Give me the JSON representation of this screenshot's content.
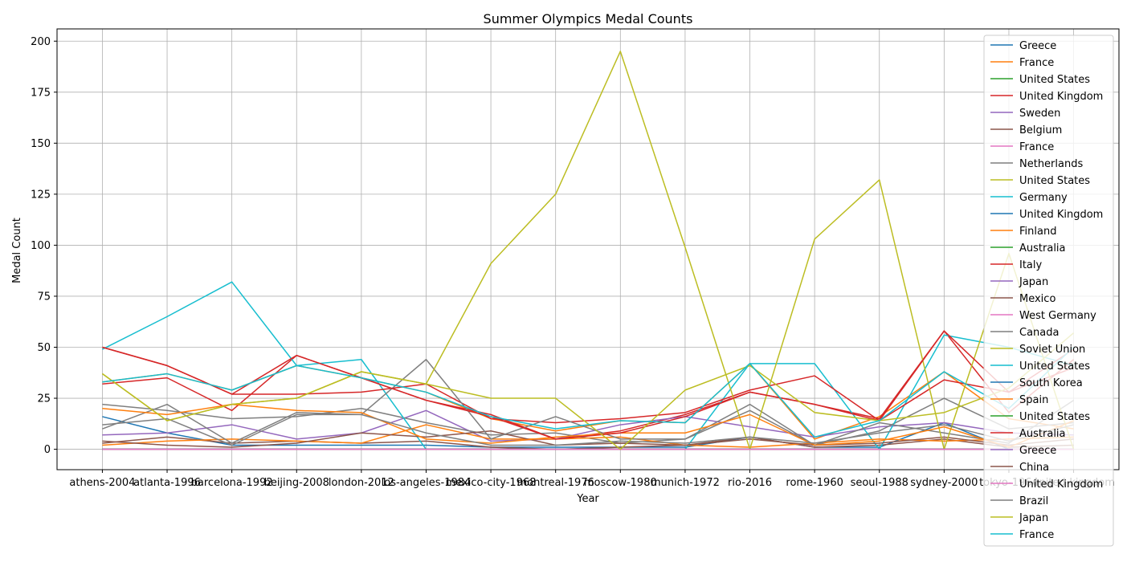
{
  "chart_data": {
    "type": "line",
    "title": "Summer Olympics Medal Counts",
    "xlabel": "Year",
    "ylabel": "Medal Count",
    "ylim": [
      -10,
      206
    ],
    "yticks": [
      0,
      25,
      50,
      75,
      100,
      125,
      150,
      175,
      200
    ],
    "grid": true,
    "legend_position": "upper right",
    "categories": [
      "athens-2004",
      "atlanta-1996",
      "barcelona-1992",
      "beijing-2008",
      "london-2012",
      "los-angeles-1984",
      "mexico-city-1968",
      "montreal-1976",
      "moscow-1980",
      "munich-1972",
      "rio-2016",
      "rome-1960",
      "seoul-1988",
      "sydney-2000",
      "tokyo-1964",
      "united-kingdom"
    ],
    "series": [
      {
        "name": "Greece",
        "color": "#1f77b4",
        "values": [
          16,
          8,
          2,
          2,
          2,
          2,
          1,
          1,
          1,
          1,
          6,
          1,
          1,
          13,
          0,
          0
        ]
      },
      {
        "name": "France",
        "color": "#ff7f0e",
        "values": [
          33,
          37,
          29,
          41,
          35,
          28,
          15,
          9,
          14,
          13,
          42,
          5,
          16,
          38,
          15,
          10
        ]
      },
      {
        "name": "United States",
        "color": "#2ca02c",
        "values": [
          0,
          0,
          0,
          0,
          0,
          0,
          0,
          0,
          0,
          0,
          0,
          0,
          0,
          0,
          0,
          0
        ]
      },
      {
        "name": "United Kingdom",
        "color": "#d62728",
        "values": [
          32,
          35,
          19,
          46,
          35,
          24,
          17,
          5,
          9,
          17,
          28,
          22,
          15,
          58,
          18,
          44
        ]
      },
      {
        "name": "Sweden",
        "color": "#9467bd",
        "values": [
          7,
          8,
          12,
          5,
          8,
          19,
          4,
          5,
          12,
          16,
          11,
          6,
          11,
          13,
          8,
          7
        ]
      },
      {
        "name": "Belgium",
        "color": "#8c564b",
        "values": [
          3,
          6,
          3,
          4,
          3,
          4,
          1,
          0,
          1,
          2,
          6,
          1,
          2,
          5,
          1,
          2
        ]
      },
      {
        "name": "France",
        "color": "#e377c2",
        "values": [
          0,
          0,
          0,
          0,
          0,
          0,
          0,
          0,
          0,
          0,
          0,
          0,
          0,
          0,
          0,
          0
        ]
      },
      {
        "name": "Netherlands",
        "color": "#7f7f7f",
        "values": [
          22,
          19,
          15,
          16,
          20,
          13,
          7,
          8,
          3,
          5,
          19,
          2,
          9,
          25,
          10,
          13
        ]
      },
      {
        "name": "United States",
        "color": "#bcbd22",
        "values": [
          0,
          0,
          0,
          0,
          0,
          0,
          0,
          0,
          0,
          0,
          0,
          0,
          0,
          0,
          0,
          0
        ]
      },
      {
        "name": "Germany",
        "color": "#17becf",
        "values": [
          49,
          65,
          82,
          41,
          44,
          0,
          0,
          0,
          0,
          0,
          42,
          42,
          0,
          56,
          50,
          41
        ]
      },
      {
        "name": "United Kingdom",
        "color": "#1f77b4",
        "values": [
          0,
          0,
          0,
          0,
          0,
          0,
          0,
          0,
          0,
          0,
          0,
          0,
          0,
          0,
          0,
          0
        ]
      },
      {
        "name": "Finland",
        "color": "#ff7f0e",
        "values": [
          2,
          4,
          5,
          4,
          3,
          12,
          5,
          5,
          6,
          2,
          1,
          3,
          5,
          4,
          5,
          6
        ]
      },
      {
        "name": "Australia",
        "color": "#2ca02c",
        "values": [
          0,
          0,
          0,
          0,
          0,
          0,
          0,
          0,
          0,
          0,
          0,
          0,
          0,
          0,
          0,
          0
        ]
      },
      {
        "name": "Italy",
        "color": "#d62728",
        "values": [
          50,
          41,
          27,
          27,
          28,
          32,
          15,
          13,
          15,
          18,
          29,
          36,
          14,
          34,
          28,
          40
        ]
      },
      {
        "name": "Japan",
        "color": "#9467bd",
        "values": [
          0,
          0,
          0,
          0,
          0,
          0,
          0,
          0,
          0,
          0,
          0,
          0,
          0,
          0,
          0,
          0
        ]
      },
      {
        "name": "Mexico",
        "color": "#8c564b",
        "values": [
          4,
          2,
          1,
          3,
          8,
          6,
          9,
          2,
          3,
          2,
          5,
          2,
          3,
          6,
          2,
          5
        ]
      },
      {
        "name": "West Germany",
        "color": "#e377c2",
        "values": [
          0,
          0,
          0,
          0,
          0,
          0,
          0,
          0,
          0,
          0,
          0,
          0,
          0,
          0,
          0,
          0
        ]
      },
      {
        "name": "Canada",
        "color": "#7f7f7f",
        "values": [
          10,
          22,
          3,
          18,
          17,
          44,
          5,
          16,
          5,
          5,
          22,
          2,
          13,
          8,
          3,
          24
        ]
      },
      {
        "name": "Soviet Union",
        "color": "#bcbd22",
        "values": [
          37,
          14,
          22,
          25,
          38,
          32,
          91,
          125,
          195,
          99,
          0,
          103,
          132,
          0,
          96,
          0
        ]
      },
      {
        "name": "United States",
        "color": "#17becf",
        "values": [
          0,
          0,
          0,
          0,
          0,
          0,
          0,
          0,
          0,
          0,
          0,
          0,
          0,
          0,
          0,
          0
        ]
      },
      {
        "name": "South Korea",
        "color": "#1f77b4",
        "values": [
          0,
          0,
          0,
          0,
          0,
          0,
          0,
          0,
          0,
          0,
          0,
          0,
          0,
          0,
          0,
          0
        ]
      },
      {
        "name": "Spain",
        "color": "#ff7f0e",
        "values": [
          20,
          17,
          22,
          19,
          18,
          5,
          3,
          6,
          8,
          8,
          17,
          2,
          4,
          11,
          1,
          14
        ]
      },
      {
        "name": "United States",
        "color": "#2ca02c",
        "values": [
          0,
          0,
          0,
          0,
          0,
          0,
          0,
          0,
          0,
          0,
          0,
          0,
          0,
          0,
          0,
          0
        ]
      },
      {
        "name": "Australia",
        "color": "#d62728",
        "values": [
          50,
          41,
          27,
          46,
          35,
          24,
          16,
          5,
          8,
          16,
          28,
          22,
          14,
          58,
          28,
          49
        ]
      },
      {
        "name": "Greece",
        "color": "#9467bd",
        "values": [
          0,
          0,
          0,
          0,
          0,
          0,
          0,
          0,
          0,
          0,
          0,
          0,
          0,
          0,
          0,
          0
        ]
      },
      {
        "name": "China",
        "color": "#8c564b",
        "values": [
          0,
          0,
          0,
          0,
          0,
          0,
          0,
          0,
          0,
          0,
          0,
          0,
          0,
          0,
          0,
          0
        ]
      },
      {
        "name": "United Kingdom",
        "color": "#e377c2",
        "values": [
          0,
          0,
          0,
          0,
          0,
          0,
          0,
          0,
          0,
          0,
          0,
          0,
          0,
          0,
          0,
          0
        ]
      },
      {
        "name": "Brazil",
        "color": "#7f7f7f",
        "values": [
          12,
          15,
          2,
          17,
          17,
          8,
          2,
          2,
          4,
          3,
          6,
          3,
          8,
          12,
          4,
          12
        ]
      },
      {
        "name": "Japan",
        "color": "#bcbd22",
        "values": [
          37,
          14,
          22,
          25,
          38,
          32,
          25,
          25,
          0,
          29,
          41,
          18,
          14,
          18,
          30,
          57
        ]
      },
      {
        "name": "France",
        "color": "#17becf",
        "values": [
          33,
          37,
          29,
          41,
          35,
          28,
          16,
          10,
          14,
          13,
          42,
          6,
          14,
          38,
          20,
          50
        ]
      }
    ]
  }
}
